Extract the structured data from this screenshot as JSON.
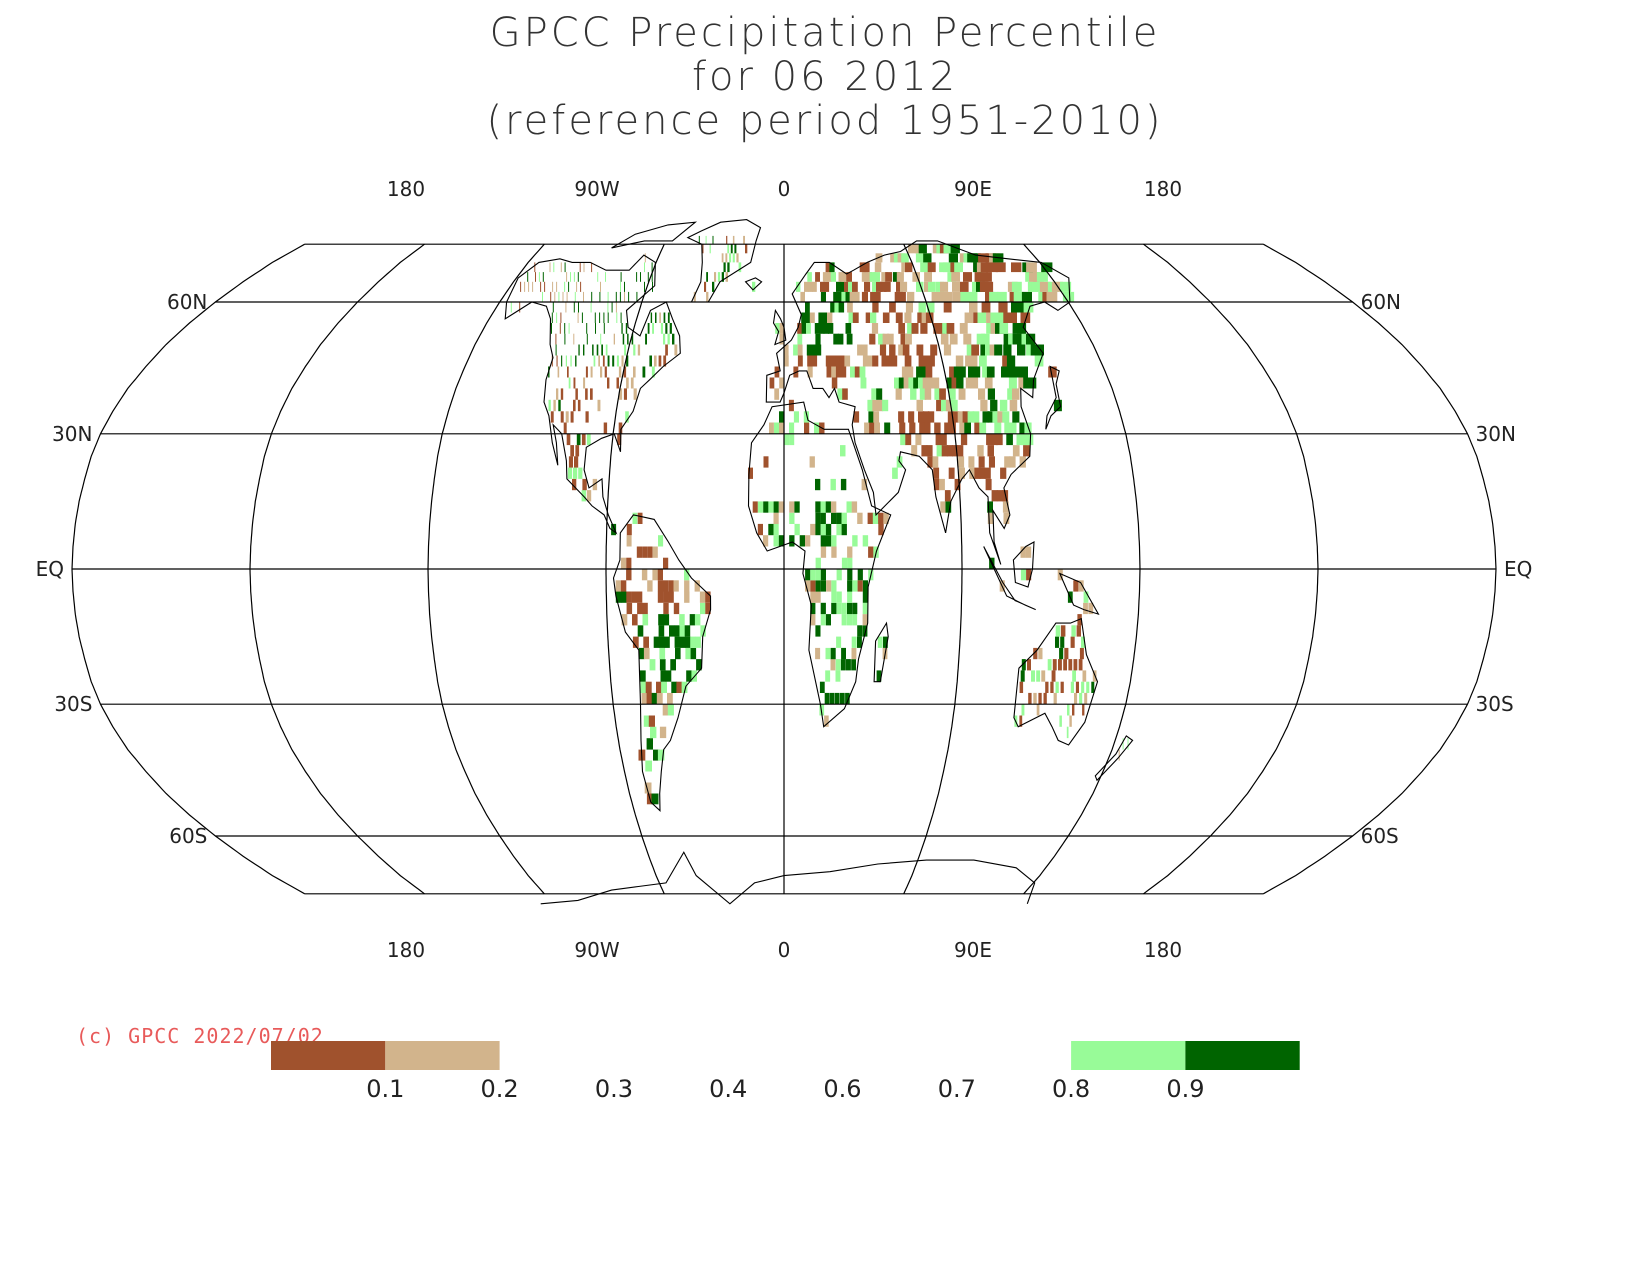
{
  "title": {
    "line1": "GPCC Precipitation Percentile",
    "line2": "for 06 2012",
    "line3": "(reference period 1951-2010)"
  },
  "copyright": "(c) GPCC 2022/07/02",
  "map": {
    "projection": "robinson",
    "lon_labels_top": [
      "180",
      "90W",
      "0",
      "90E",
      "180"
    ],
    "lon_labels_bottom": [
      "180",
      "90W",
      "0",
      "90E",
      "180"
    ],
    "lat_labels": [
      {
        "lat": 60,
        "text": "60N"
      },
      {
        "lat": 30,
        "text": "30N"
      },
      {
        "lat": 0,
        "text": "EQ"
      },
      {
        "lat": -30,
        "text": "30S"
      },
      {
        "lat": -60,
        "text": "60S"
      }
    ],
    "colors": {
      "very_dry": "#a0522d",
      "dry": "#d2b48c",
      "wet": "#98fb98",
      "very_wet": "#006400",
      "coast": "#000000",
      "grid": "#000000"
    }
  },
  "legend": {
    "ticks": [
      "0.1",
      "0.2",
      "0.3",
      "0.4",
      "0.6",
      "0.7",
      "0.8",
      "0.9"
    ],
    "boxes": [
      {
        "color": "#a0522d",
        "from": 0,
        "to": 1
      },
      {
        "color": "#d2b48c",
        "from": 1,
        "to": 2
      },
      {
        "color": "#98fb98",
        "from": 7,
        "to": 8
      },
      {
        "color": "#006400",
        "from": 8,
        "to": 9
      }
    ]
  }
}
